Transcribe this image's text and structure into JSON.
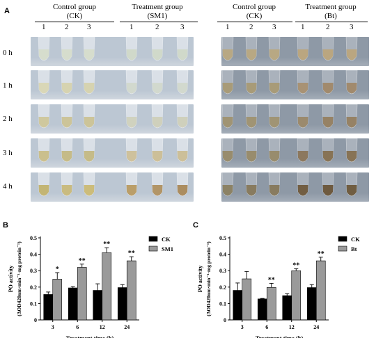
{
  "figure": {
    "panel_a": {
      "letter": "A",
      "groups": [
        {
          "line1": "Control group",
          "line2": "(CK)",
          "indices": [
            "1",
            "2",
            "3"
          ]
        },
        {
          "line1": "Treatment group",
          "line2": "(SM1)",
          "indices": [
            "1",
            "2",
            "3"
          ]
        },
        {
          "line1": "Control group",
          "line2": "(CK)",
          "indices": [
            "1",
            "2",
            "3"
          ]
        },
        {
          "line1": "Treatment group",
          "line2": "(Bt)",
          "indices": [
            "1",
            "2",
            "3"
          ]
        }
      ],
      "time_rows": [
        "0 h",
        "1 h",
        "2 h",
        "3 h",
        "4 h"
      ],
      "photo_colors": {
        "left_bg": "#bcc7d3",
        "right_bg": "#8e99a6"
      }
    },
    "panel_b": {
      "letter": "B"
    },
    "panel_c": {
      "letter": "C"
    }
  },
  "chart_data": [
    {
      "type": "bar",
      "panel": "B",
      "categories": [
        "3",
        "6",
        "12",
        "24"
      ],
      "series": [
        {
          "name": "CK",
          "values": [
            0.155,
            0.195,
            0.18,
            0.197
          ],
          "errors": [
            0.015,
            0.008,
            0.04,
            0.018
          ],
          "color": "#000000"
        },
        {
          "name": "SM1",
          "values": [
            0.248,
            0.32,
            0.41,
            0.36
          ],
          "errors": [
            0.04,
            0.02,
            0.03,
            0.025
          ],
          "color": "#9a9a9a"
        }
      ],
      "significance": [
        [
          "",
          "*"
        ],
        [
          "",
          "**"
        ],
        [
          "",
          "**"
        ],
        [
          "",
          "**"
        ]
      ],
      "xlabel": "Treatment time (h)",
      "ylabel": "PO activity",
      "ylabel2": "(ΔOD420nm·min⁻¹·mg protein⁻¹)",
      "ylim": [
        0,
        0.5
      ],
      "yticks": [
        "0",
        "0.1",
        "0.2",
        "0.3",
        "0.4",
        "0.5"
      ],
      "legend_position": "right"
    },
    {
      "type": "bar",
      "panel": "C",
      "categories": [
        "3",
        "6",
        "12",
        "24"
      ],
      "series": [
        {
          "name": "CK",
          "values": [
            0.18,
            0.128,
            0.148,
            0.197
          ],
          "errors": [
            0.045,
            0.003,
            0.012,
            0.018
          ],
          "color": "#000000"
        },
        {
          "name": "Bt",
          "values": [
            0.25,
            0.198,
            0.3,
            0.36
          ],
          "errors": [
            0.045,
            0.025,
            0.012,
            0.022
          ],
          "color": "#9a9a9a"
        }
      ],
      "significance": [
        [
          "",
          ""
        ],
        [
          "",
          "**"
        ],
        [
          "",
          "**"
        ],
        [
          "",
          "**"
        ]
      ],
      "xlabel": "Treatment time (h)",
      "ylabel": "PO activity",
      "ylabel2": "(ΔOD420nm·min⁻¹·mg protein⁻¹)",
      "ylim": [
        0,
        0.5
      ],
      "yticks": [
        "0",
        "0.1",
        "0.2",
        "0.3",
        "0.4",
        "0.5"
      ],
      "legend_position": "right"
    }
  ]
}
